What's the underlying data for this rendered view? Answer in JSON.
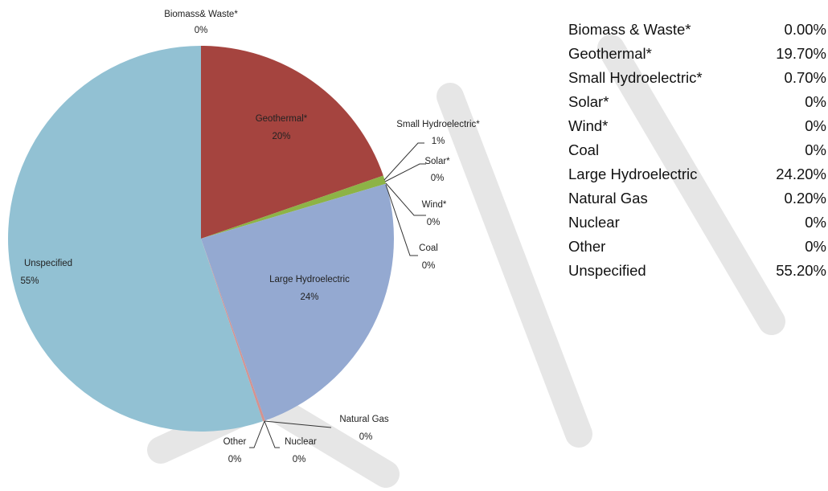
{
  "chart_data": {
    "type": "pie",
    "categories": [
      "Biomass& Waste*",
      "Geothermal*",
      "Small Hydroelectric*",
      "Solar*",
      "Wind*",
      "Coal",
      "Large Hydroelectric",
      "Natural Gas",
      "Nuclear",
      "Other",
      "Unspecified"
    ],
    "values": [
      0,
      19.7,
      0.7,
      0,
      0,
      0,
      24.2,
      0.2,
      0,
      0,
      55.2
    ],
    "value_labels": [
      "0%",
      "20%",
      "1%",
      "0%",
      "0%",
      "0%",
      "24%",
      "0%",
      "0%",
      "0%",
      "55%"
    ],
    "colors": [
      "#4f81bd",
      "#a5443f",
      "#8db346",
      "#7f64a2",
      "#4bacc6",
      "#f79646",
      "#94a9d1",
      "#d5928f",
      "#b7cc8d",
      "#a898c0",
      "#92c1d3"
    ]
  },
  "table": {
    "rows": [
      [
        "Biomass & Waste*",
        "0.00%"
      ],
      [
        "Geothermal*",
        "19.70%"
      ],
      [
        "Small Hydroelectric*",
        "0.70%"
      ],
      [
        "Solar*",
        "0%"
      ],
      [
        "Wind*",
        "0%"
      ],
      [
        "Coal",
        "0%"
      ],
      [
        "Large Hydroelectric",
        "24.20%"
      ],
      [
        "Natural Gas",
        "0.20%"
      ],
      [
        "Nuclear",
        "0%"
      ],
      [
        "Other",
        "0%"
      ],
      [
        "Unspecified",
        "55.20%"
      ]
    ]
  }
}
